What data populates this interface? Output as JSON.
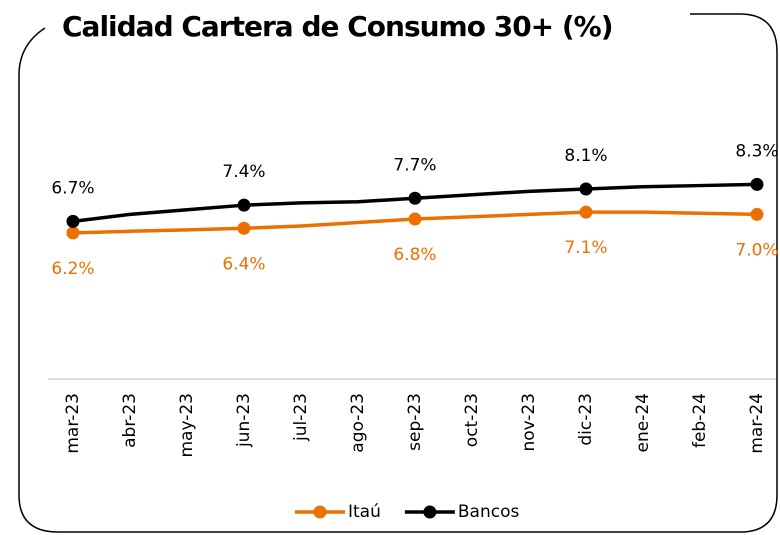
{
  "chart_data": {
    "type": "line",
    "title": "Calidad Cartera de Consumo 30+ (%)",
    "categories": [
      "mar-23",
      "abr-23",
      "may-23",
      "jun-23",
      "jul-23",
      "ago-23",
      "sep-23",
      "oct-23",
      "nov-23",
      "dic-23",
      "ene-24",
      "feb-24",
      "mar-24"
    ],
    "series": [
      {
        "name": "Itaú",
        "color": "#ec7000",
        "values": [
          6.2,
          6.27,
          6.33,
          6.4,
          6.5,
          6.65,
          6.8,
          6.9,
          7.0,
          7.1,
          7.1,
          7.05,
          7.0
        ],
        "value_labels": [
          "6.2%",
          null,
          null,
          "6.4%",
          null,
          null,
          "6.8%",
          null,
          null,
          "7.1%",
          null,
          null,
          "7.0%"
        ]
      },
      {
        "name": "Bancos",
        "color": "#000000",
        "values": [
          6.7,
          7.0,
          7.2,
          7.4,
          7.5,
          7.55,
          7.7,
          7.85,
          8.0,
          8.1,
          8.2,
          8.25,
          8.3
        ],
        "value_labels": [
          "6.7%",
          null,
          null,
          "7.4%",
          null,
          null,
          "7.7%",
          null,
          null,
          "8.1%",
          null,
          null,
          "8.3%"
        ]
      }
    ],
    "ylim": [
      0,
      12
    ],
    "legend": "bottom"
  }
}
